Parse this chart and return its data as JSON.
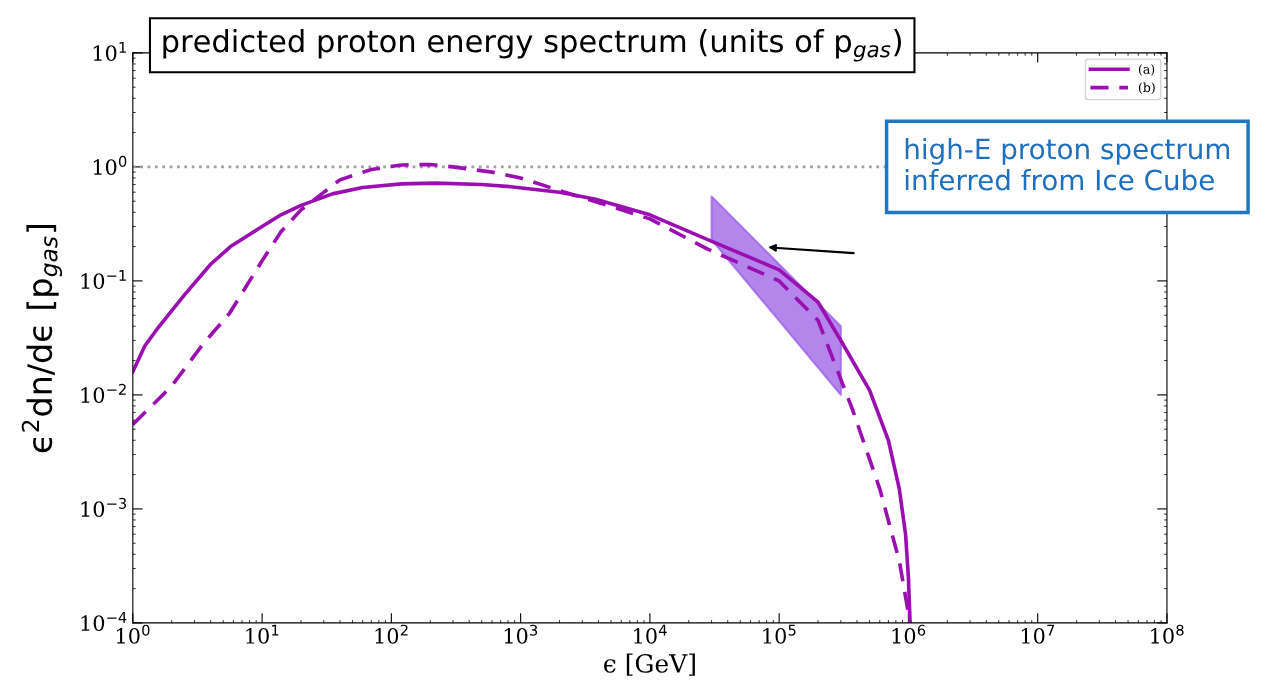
{
  "chart_data": {
    "type": "line",
    "title": "predicted proton energy spectrum (units of p$_{gas}$)",
    "xlabel": "ϵ [GeV]",
    "ylabel": "ϵ$^{2}$dn/dϵ [p$_{gas}$]",
    "log": "xy",
    "xlim": [
      1,
      100000000
    ],
    "ylim": [
      0.0001,
      10
    ],
    "xticks": [
      {
        "value": 1,
        "label": "10$^{0}$"
      },
      {
        "value": 10,
        "label": "10$^{1}$"
      },
      {
        "value": 100,
        "label": "10$^{2}$"
      },
      {
        "value": 1000,
        "label": "10$^{3}$"
      },
      {
        "value": 10000,
        "label": "10$^{4}$"
      },
      {
        "value": 100000,
        "label": "10$^{5}$"
      },
      {
        "value": 1000000,
        "label": "10$^{6}$"
      },
      {
        "value": 10000000,
        "label": "10$^{7}$"
      },
      {
        "value": 100000000,
        "label": "10$^{8}$"
      }
    ],
    "yticks": [
      {
        "value": 0.0001,
        "label": "10$^{−4}$"
      },
      {
        "value": 0.001,
        "label": "10$^{−3}$"
      },
      {
        "value": 0.01,
        "label": "10$^{−2}$"
      },
      {
        "value": 0.1,
        "label": "10$^{−1}$"
      },
      {
        "value": 1,
        "label": "10$^{0}$"
      },
      {
        "value": 10,
        "label": "10$^{1}$"
      }
    ],
    "legend": "top right",
    "grid": false,
    "ref_lines": [
      {
        "axis": "y",
        "value": 1,
        "color": "#a0a0a0",
        "line_style": "dotted"
      }
    ],
    "annotations": [
      "high-E proton spectrum\ninferred from Ice Cube"
    ],
    "series": [
      {
        "name": "(a)",
        "color": "#9a0fb0",
        "line_style": "solid",
        "x": [
          1,
          1.24,
          1.6,
          2.5,
          4,
          5.7,
          10,
          14,
          20,
          35,
          60,
          120,
          220,
          500,
          840,
          2000,
          3800,
          10000,
          28000,
          60000,
          100000,
          200000,
          300000,
          500000,
          700000,
          850000,
          950000,
          1000000,
          1030000
        ],
        "values": [
          0.016,
          0.027,
          0.04,
          0.075,
          0.14,
          0.2,
          0.3,
          0.38,
          0.46,
          0.58,
          0.66,
          0.71,
          0.72,
          0.7,
          0.67,
          0.6,
          0.52,
          0.38,
          0.23,
          0.16,
          0.125,
          0.065,
          0.03,
          0.011,
          0.004,
          0.0015,
          0.0006,
          0.00025,
          0.0001
        ]
      },
      {
        "name": "(b)",
        "color": "#9a0fb0",
        "line_style": "dashed",
        "x": [
          1,
          2,
          3.5,
          5.6,
          8,
          10,
          14,
          20,
          40,
          70,
          120,
          200,
          300,
          600,
          1000,
          2000,
          3500,
          10000,
          28000,
          100000,
          200000,
          370000,
          600000,
          850000,
          1030000
        ],
        "values": [
          0.0055,
          0.012,
          0.028,
          0.052,
          0.1,
          0.15,
          0.27,
          0.42,
          0.77,
          0.95,
          1.04,
          1.05,
          1.0,
          0.9,
          0.8,
          0.62,
          0.51,
          0.35,
          0.19,
          0.1,
          0.045,
          0.0074,
          0.0015,
          0.00035,
          0.0001
        ]
      },
      {
        "type": "area",
        "color": "#9b5de5",
        "x": [
          30000,
          300000
        ],
        "values": [
          null,
          null
        ],
        "lower": [
          0.23,
          0.01
        ],
        "upper": [
          0.55,
          0.04
        ]
      }
    ]
  }
}
